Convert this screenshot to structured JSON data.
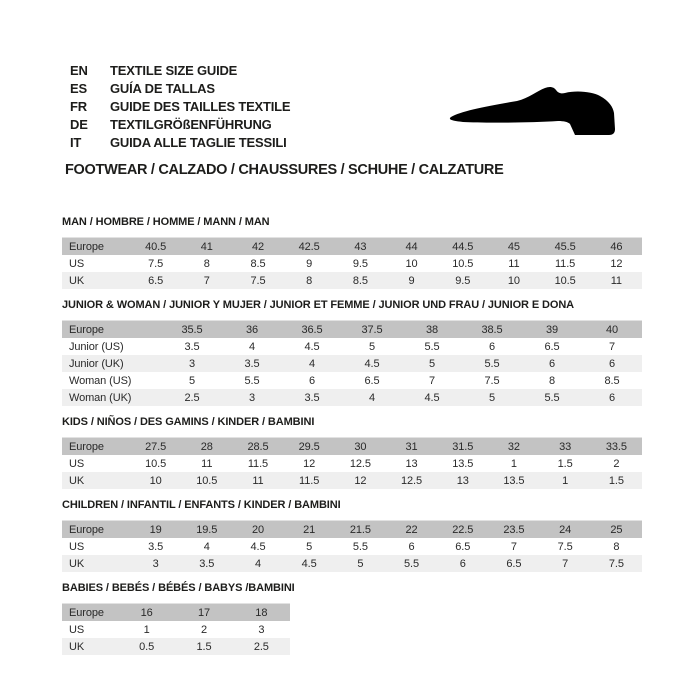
{
  "header": {
    "languages": [
      {
        "code": "EN",
        "text": "TEXTILE SIZE GUIDE"
      },
      {
        "code": "ES",
        "text": "GUÍA DE TALLAS"
      },
      {
        "code": "FR",
        "text": "GUIDE DES TAILLES TEXTILE"
      },
      {
        "code": "DE",
        "text": "TEXTILGRÖßENFÜHRUNG"
      },
      {
        "code": "IT",
        "text": "GUIDA ALLE TAGLIE TESSILI"
      }
    ],
    "category_title": "FOOTWEAR / CALZADO / CHAUSSURES / SCHUHE / CALZATURE",
    "shoe_icon": "dress-shoe-silhouette"
  },
  "colors": {
    "header_row_bg": "#c3c3c3",
    "alt_row_bg": "#efefef",
    "text": "#1d1d1b",
    "shoe": "#000000"
  },
  "tables": [
    {
      "title": "MAN / HOMBRE / HOMME / MANN / MAN",
      "rows": [
        {
          "label": "Europe",
          "values": [
            "40.5",
            "41",
            "42",
            "42.5",
            "43",
            "44",
            "44.5",
            "45",
            "45.5",
            "46"
          ]
        },
        {
          "label": "US",
          "values": [
            "7.5",
            "8",
            "8.5",
            "9",
            "9.5",
            "10",
            "10.5",
            "11",
            "11.5",
            "12"
          ]
        },
        {
          "label": "UK",
          "values": [
            "6.5",
            "7",
            "7.5",
            "8",
            "8.5",
            "9",
            "9.5",
            "10",
            "10.5",
            "11"
          ]
        }
      ]
    },
    {
      "title": "JUNIOR & WOMAN / JUNIOR Y MUJER / JUNIOR ET FEMME / JUNIOR UND FRAU / JUNIOR E DONA",
      "rows": [
        {
          "label": "Europe",
          "values": [
            "35.5",
            "36",
            "36.5",
            "37.5",
            "38",
            "38.5",
            "39",
            "40"
          ]
        },
        {
          "label": "Junior (US)",
          "values": [
            "3.5",
            "4",
            "4.5",
            "5",
            "5.5",
            "6",
            "6.5",
            "7"
          ]
        },
        {
          "label": "Junior (UK)",
          "values": [
            "3",
            "3.5",
            "4",
            "4.5",
            "5",
            "5.5",
            "6",
            "6"
          ]
        },
        {
          "label": "Woman (US)",
          "values": [
            "5",
            "5.5",
            "6",
            "6.5",
            "7",
            "7.5",
            "8",
            "8.5"
          ]
        },
        {
          "label": "Woman (UK)",
          "values": [
            "2.5",
            "3",
            "3.5",
            "4",
            "4.5",
            "5",
            "5.5",
            "6"
          ]
        }
      ]
    },
    {
      "title": "KIDS / NIÑOS / DES GAMINS / KINDER / BAMBINI",
      "rows": [
        {
          "label": "Europe",
          "values": [
            "27.5",
            "28",
            "28.5",
            "29.5",
            "30",
            "31",
            "31.5",
            "32",
            "33",
            "33.5"
          ]
        },
        {
          "label": "US",
          "values": [
            "10.5",
            "11",
            "11.5",
            "12",
            "12.5",
            "13",
            "13.5",
            "1",
            "1.5",
            "2"
          ]
        },
        {
          "label": "UK",
          "values": [
            "10",
            "10.5",
            "11",
            "11.5",
            "12",
            "12.5",
            "13",
            "13.5",
            "1",
            "1.5"
          ]
        }
      ]
    },
    {
      "title": "CHILDREN / INFANTIL / ENFANTS / KINDER / BAMBINI",
      "rows": [
        {
          "label": "Europe",
          "values": [
            "19",
            "19.5",
            "20",
            "21",
            "21.5",
            "22",
            "22.5",
            "23.5",
            "24",
            "25"
          ]
        },
        {
          "label": "US",
          "values": [
            "3.5",
            "4",
            "4.5",
            "5",
            "5.5",
            "6",
            "6.5",
            "7",
            "7.5",
            "8"
          ]
        },
        {
          "label": "UK",
          "values": [
            "3",
            "3.5",
            "4",
            "4.5",
            "5",
            "5.5",
            "6",
            "6.5",
            "7",
            "7.5"
          ]
        }
      ]
    },
    {
      "title": "BABIES  / BEBÉS / BÉBÉS / BABYS /BAMBINI",
      "compact": true,
      "rows": [
        {
          "label": "Europe",
          "values": [
            "16",
            "17",
            "18"
          ]
        },
        {
          "label": "US",
          "values": [
            "1",
            "2",
            "3"
          ]
        },
        {
          "label": "UK",
          "values": [
            "0.5",
            "1.5",
            "2.5"
          ]
        }
      ]
    }
  ]
}
